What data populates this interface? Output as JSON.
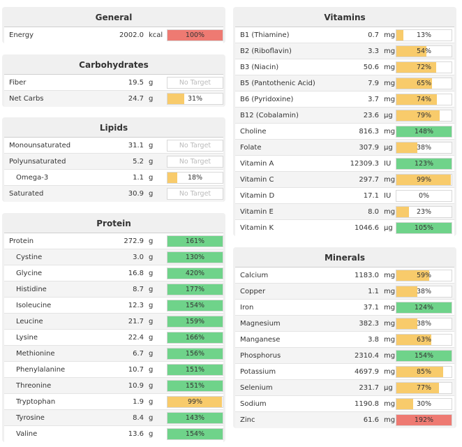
{
  "colors": {
    "red": "#ee7a72",
    "yellow": "#f8cb6b",
    "green": "#6fd38a"
  },
  "panels": {
    "general": {
      "title": "General",
      "rows": [
        {
          "name": "Energy",
          "amount": "2002.0",
          "unit": "kcal",
          "pct": "100%",
          "fill": 100,
          "color": "red"
        }
      ]
    },
    "carbs": {
      "title": "Carbohydrates",
      "rows": [
        {
          "name": "Fiber",
          "amount": "19.5",
          "unit": "g",
          "pct": "No Target",
          "notarget": true
        },
        {
          "name": "Net Carbs",
          "amount": "24.7",
          "unit": "g",
          "pct": "31%",
          "fill": 31,
          "color": "yellow"
        }
      ]
    },
    "lipids": {
      "title": "Lipids",
      "rows": [
        {
          "name": "Monounsaturated",
          "amount": "31.1",
          "unit": "g",
          "pct": "No Target",
          "notarget": true
        },
        {
          "name": "Polyunsaturated",
          "amount": "5.2",
          "unit": "g",
          "pct": "No Target",
          "notarget": true
        },
        {
          "name": "Omega-3",
          "amount": "1.1",
          "unit": "g",
          "pct": "18%",
          "fill": 18,
          "color": "yellow",
          "indent": true
        },
        {
          "name": "Saturated",
          "amount": "30.9",
          "unit": "g",
          "pct": "No Target",
          "notarget": true
        }
      ]
    },
    "protein": {
      "title": "Protein",
      "rows": [
        {
          "name": "Protein",
          "amount": "272.9",
          "unit": "g",
          "pct": "161%",
          "fill": 100,
          "color": "green"
        },
        {
          "name": "Cystine",
          "amount": "3.0",
          "unit": "g",
          "pct": "130%",
          "fill": 100,
          "color": "green",
          "indent": true
        },
        {
          "name": "Glycine",
          "amount": "16.8",
          "unit": "g",
          "pct": "420%",
          "fill": 100,
          "color": "green",
          "indent": true
        },
        {
          "name": "Histidine",
          "amount": "8.7",
          "unit": "g",
          "pct": "177%",
          "fill": 100,
          "color": "green",
          "indent": true
        },
        {
          "name": "Isoleucine",
          "amount": "12.3",
          "unit": "g",
          "pct": "154%",
          "fill": 100,
          "color": "green",
          "indent": true
        },
        {
          "name": "Leucine",
          "amount": "21.7",
          "unit": "g",
          "pct": "159%",
          "fill": 100,
          "color": "green",
          "indent": true
        },
        {
          "name": "Lysine",
          "amount": "22.4",
          "unit": "g",
          "pct": "166%",
          "fill": 100,
          "color": "green",
          "indent": true
        },
        {
          "name": "Methionine",
          "amount": "6.7",
          "unit": "g",
          "pct": "156%",
          "fill": 100,
          "color": "green",
          "indent": true
        },
        {
          "name": "Phenylalanine",
          "amount": "10.7",
          "unit": "g",
          "pct": "151%",
          "fill": 100,
          "color": "green",
          "indent": true
        },
        {
          "name": "Threonine",
          "amount": "10.9",
          "unit": "g",
          "pct": "151%",
          "fill": 100,
          "color": "green",
          "indent": true
        },
        {
          "name": "Tryptophan",
          "amount": "1.9",
          "unit": "g",
          "pct": "99%",
          "fill": 99,
          "color": "yellow",
          "indent": true
        },
        {
          "name": "Tyrosine",
          "amount": "8.4",
          "unit": "g",
          "pct": "143%",
          "fill": 100,
          "color": "green",
          "indent": true
        },
        {
          "name": "Valine",
          "amount": "13.6",
          "unit": "g",
          "pct": "154%",
          "fill": 100,
          "color": "green",
          "indent": true
        }
      ]
    },
    "vitamins": {
      "title": "Vitamins",
      "rows": [
        {
          "name": "B1 (Thiamine)",
          "amount": "0.7",
          "unit": "mg",
          "pct": "13%",
          "fill": 13,
          "color": "yellow"
        },
        {
          "name": "B2 (Riboflavin)",
          "amount": "3.3",
          "unit": "mg",
          "pct": "54%",
          "fill": 54,
          "color": "yellow"
        },
        {
          "name": "B3 (Niacin)",
          "amount": "50.6",
          "unit": "mg",
          "pct": "72%",
          "fill": 72,
          "color": "yellow"
        },
        {
          "name": "B5 (Pantothenic Acid)",
          "amount": "7.9",
          "unit": "mg",
          "pct": "65%",
          "fill": 65,
          "color": "yellow"
        },
        {
          "name": "B6 (Pyridoxine)",
          "amount": "3.7",
          "unit": "mg",
          "pct": "74%",
          "fill": 74,
          "color": "yellow"
        },
        {
          "name": "B12 (Cobalamin)",
          "amount": "23.6",
          "unit": "µg",
          "pct": "79%",
          "fill": 79,
          "color": "yellow"
        },
        {
          "name": "Choline",
          "amount": "816.3",
          "unit": "mg",
          "pct": "148%",
          "fill": 100,
          "color": "green"
        },
        {
          "name": "Folate",
          "amount": "307.9",
          "unit": "µg",
          "pct": "38%",
          "fill": 38,
          "color": "yellow"
        },
        {
          "name": "Vitamin A",
          "amount": "12309.3",
          "unit": "IU",
          "pct": "123%",
          "fill": 100,
          "color": "green"
        },
        {
          "name": "Vitamin C",
          "amount": "297.7",
          "unit": "mg",
          "pct": "99%",
          "fill": 99,
          "color": "yellow"
        },
        {
          "name": "Vitamin D",
          "amount": "17.1",
          "unit": "IU",
          "pct": "0%",
          "fill": 0,
          "color": "yellow"
        },
        {
          "name": "Vitamin E",
          "amount": "8.0",
          "unit": "mg",
          "pct": "23%",
          "fill": 23,
          "color": "yellow"
        },
        {
          "name": "Vitamin K",
          "amount": "1046.6",
          "unit": "µg",
          "pct": "105%",
          "fill": 100,
          "color": "green"
        }
      ]
    },
    "minerals": {
      "title": "Minerals",
      "rows": [
        {
          "name": "Calcium",
          "amount": "1183.0",
          "unit": "mg",
          "pct": "59%",
          "fill": 59,
          "color": "yellow"
        },
        {
          "name": "Copper",
          "amount": "1.1",
          "unit": "mg",
          "pct": "38%",
          "fill": 38,
          "color": "yellow"
        },
        {
          "name": "Iron",
          "amount": "37.1",
          "unit": "mg",
          "pct": "124%",
          "fill": 100,
          "color": "green"
        },
        {
          "name": "Magnesium",
          "amount": "382.3",
          "unit": "mg",
          "pct": "38%",
          "fill": 38,
          "color": "yellow"
        },
        {
          "name": "Manganese",
          "amount": "3.8",
          "unit": "mg",
          "pct": "63%",
          "fill": 63,
          "color": "yellow"
        },
        {
          "name": "Phosphorus",
          "amount": "2310.4",
          "unit": "mg",
          "pct": "154%",
          "fill": 100,
          "color": "green"
        },
        {
          "name": "Potassium",
          "amount": "4697.9",
          "unit": "mg",
          "pct": "85%",
          "fill": 85,
          "color": "yellow"
        },
        {
          "name": "Selenium",
          "amount": "231.7",
          "unit": "µg",
          "pct": "77%",
          "fill": 77,
          "color": "yellow"
        },
        {
          "name": "Sodium",
          "amount": "1190.8",
          "unit": "mg",
          "pct": "30%",
          "fill": 30,
          "color": "yellow"
        },
        {
          "name": "Zinc",
          "amount": "61.6",
          "unit": "mg",
          "pct": "192%",
          "fill": 100,
          "color": "red"
        }
      ]
    }
  }
}
